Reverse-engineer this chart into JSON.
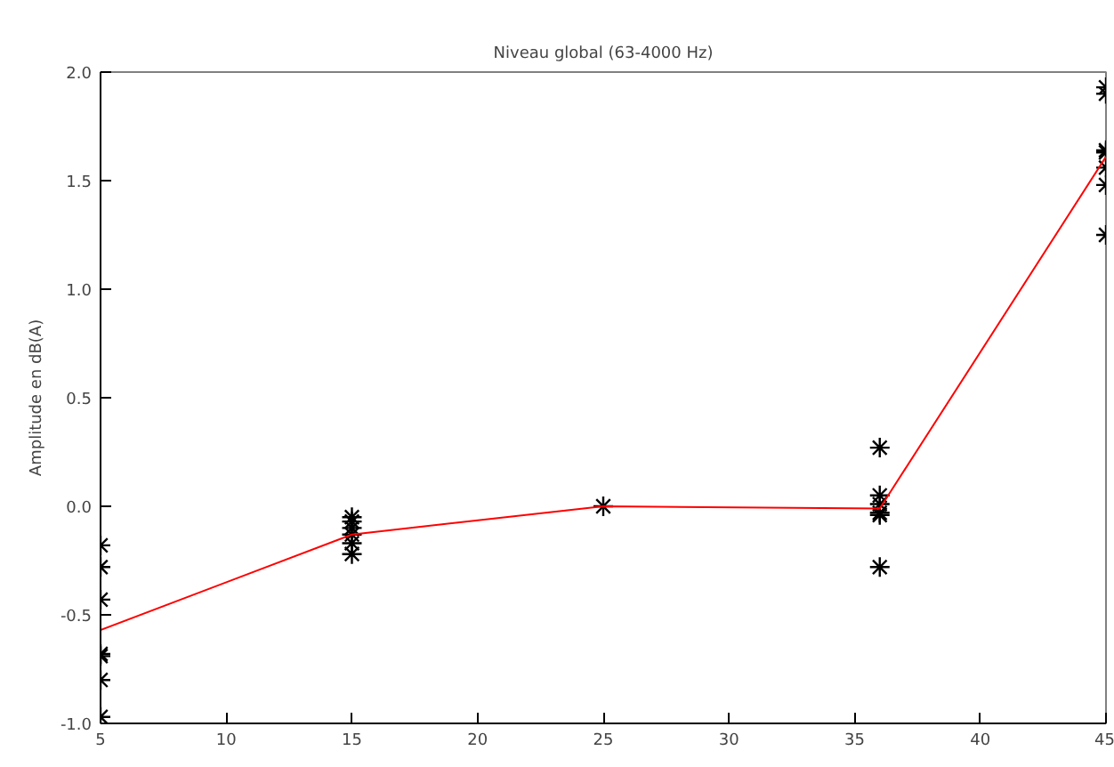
{
  "chart_data": {
    "type": "scatter",
    "title": "Niveau global (63-4000 Hz)",
    "ylabel": "Amplitude en dB(A)",
    "xlim": [
      5,
      45
    ],
    "xticks": [
      5,
      10,
      15,
      20,
      25,
      30,
      35,
      40,
      45
    ],
    "ylim": [
      -1.0,
      2.0
    ],
    "yticks": [
      {
        "value": -1.0,
        "label": "-1.0"
      },
      {
        "value": -0.5,
        "label": "-0.5"
      },
      {
        "value": 0,
        "label": "0.0"
      },
      {
        "value": 0.5,
        "label": "0.5"
      },
      {
        "value": 1.0,
        "label": "1.0"
      },
      {
        "value": 1.5,
        "label": "1.5"
      },
      {
        "value": 2.0,
        "label": "2.0"
      }
    ],
    "grid": false,
    "series": [
      {
        "marker": "cross",
        "color": "#000000",
        "x": [
          5,
          5,
          5,
          5,
          5,
          5,
          5,
          15,
          15,
          15,
          15,
          15,
          15,
          25,
          36,
          36,
          36,
          36,
          36,
          36,
          45,
          45,
          45,
          45,
          45,
          45,
          45
        ],
        "values": [
          -0.18,
          -0.28,
          -0.43,
          -0.68,
          -0.69,
          -0.8,
          -0.97,
          -0.05,
          -0.07,
          -0.1,
          -0.13,
          -0.17,
          -0.22,
          0.0,
          0.27,
          0.05,
          0.01,
          -0.03,
          -0.04,
          -0.28,
          1.93,
          1.9,
          1.64,
          1.63,
          1.56,
          1.48,
          1.25
        ]
      },
      {
        "type": "line",
        "marker": "none",
        "line_style": "solid",
        "color": "#ff0000",
        "x": [
          5,
          15,
          25,
          36,
          45
        ],
        "values": [
          -0.57,
          -0.13,
          0.0,
          -0.01,
          1.61
        ]
      }
    ]
  }
}
